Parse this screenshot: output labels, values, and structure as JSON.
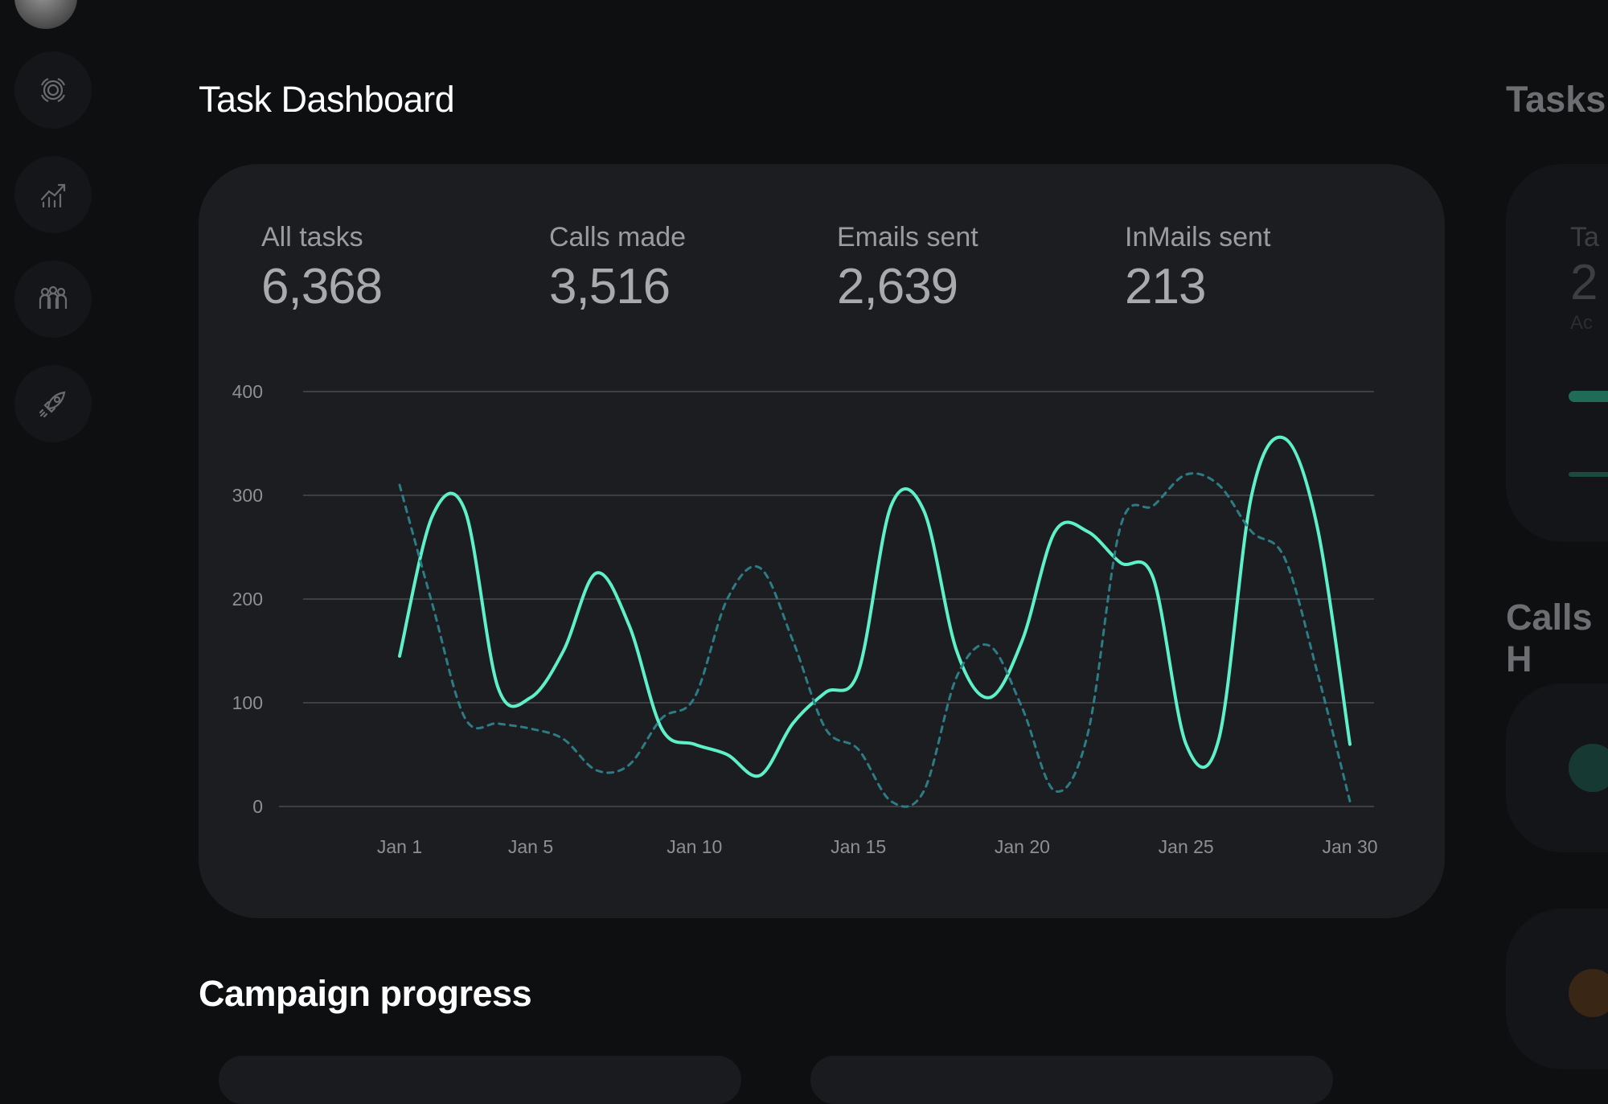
{
  "page_title": "Task Dashboard",
  "section_title": "Campaign progress",
  "right_panel": {
    "title_tasks": "Tasks",
    "title_calls": "Calls H",
    "card_label": "Ta",
    "card_value": "2",
    "card_sub": "Ac"
  },
  "sidebar_icons": [
    "target-icon",
    "analytics-icon",
    "team-icon",
    "rocket-icon"
  ],
  "stats": [
    {
      "label": "All tasks",
      "value": "6,368",
      "active": true
    },
    {
      "label": "Calls made",
      "value": "3,516",
      "active": false
    },
    {
      "label": "Emails sent",
      "value": "2,639",
      "active": false
    },
    {
      "label": "InMails sent",
      "value": "213",
      "active": false
    }
  ],
  "colors": {
    "accent": "#5ef0c8",
    "secondary": "#2c7c86",
    "background": "#0e0f11",
    "card": "#1c1d20"
  },
  "chart_data": {
    "type": "line",
    "categories": [
      "Jan 1",
      "Jan 5",
      "Jan 10",
      "Jan 15",
      "Jan 20",
      "Jan 25",
      "Jan 30"
    ],
    "ylim": [
      0,
      400
    ],
    "yticks": [
      0,
      100,
      200,
      300,
      400
    ],
    "grid": true,
    "series": [
      {
        "style": "solid",
        "points": [
          [
            1,
            145
          ],
          [
            2,
            280
          ],
          [
            3,
            285
          ],
          [
            4,
            115
          ],
          [
            5,
            105
          ],
          [
            6,
            150
          ],
          [
            7,
            225
          ],
          [
            8,
            175
          ],
          [
            9,
            75
          ],
          [
            10,
            60
          ],
          [
            11,
            50
          ],
          [
            12,
            30
          ],
          [
            13,
            80
          ],
          [
            14,
            110
          ],
          [
            15,
            130
          ],
          [
            16,
            290
          ],
          [
            17,
            285
          ],
          [
            18,
            150
          ],
          [
            19,
            105
          ],
          [
            20,
            160
          ],
          [
            21,
            265
          ],
          [
            22,
            265
          ],
          [
            23,
            235
          ],
          [
            24,
            220
          ],
          [
            25,
            60
          ],
          [
            26,
            65
          ],
          [
            27,
            300
          ],
          [
            28,
            355
          ],
          [
            29,
            270
          ],
          [
            30,
            60
          ]
        ]
      },
      {
        "style": "dashed",
        "points": [
          [
            1,
            310
          ],
          [
            2,
            195
          ],
          [
            3,
            85
          ],
          [
            4,
            80
          ],
          [
            5,
            75
          ],
          [
            6,
            65
          ],
          [
            7,
            35
          ],
          [
            8,
            40
          ],
          [
            9,
            85
          ],
          [
            10,
            105
          ],
          [
            11,
            200
          ],
          [
            12,
            230
          ],
          [
            13,
            160
          ],
          [
            14,
            75
          ],
          [
            15,
            55
          ],
          [
            16,
            5
          ],
          [
            17,
            15
          ],
          [
            18,
            125
          ],
          [
            19,
            155
          ],
          [
            20,
            95
          ],
          [
            21,
            15
          ],
          [
            22,
            70
          ],
          [
            23,
            270
          ],
          [
            24,
            290
          ],
          [
            25,
            320
          ],
          [
            26,
            310
          ],
          [
            27,
            265
          ],
          [
            28,
            240
          ],
          [
            29,
            130
          ],
          [
            30,
            5
          ]
        ]
      }
    ]
  }
}
